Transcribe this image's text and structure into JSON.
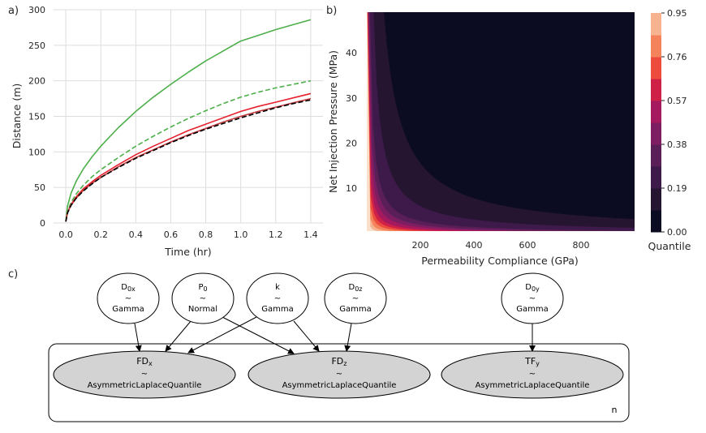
{
  "figure": {
    "panel_a_label": "a)",
    "panel_b_label": "b)",
    "panel_c_label": "c)"
  },
  "chart_data": [
    {
      "type": "line",
      "xlabel": "Time (hr)",
      "ylabel": "Distance (m)",
      "xlim": [
        -0.07,
        1.47
      ],
      "ylim": [
        0,
        300
      ],
      "xticks": [
        "0.0",
        "0.2",
        "0.4",
        "0.6",
        "0.8",
        "1.0",
        "1.2",
        "1.4"
      ],
      "yticks": [
        "0",
        "50",
        "100",
        "150",
        "200",
        "250",
        "300"
      ],
      "grid": true,
      "x": [
        0,
        0.01,
        0.03,
        0.06,
        0.1,
        0.15,
        0.2,
        0.3,
        0.4,
        0.5,
        0.6,
        0.7,
        0.8,
        0.9,
        1.0,
        1.1,
        1.2,
        1.3,
        1.4
      ],
      "series": [
        {
          "color": "#4daf4a",
          "dash": "solid",
          "values": [
            2,
            24,
            42,
            59,
            76,
            93,
            108,
            134,
            157,
            177,
            195,
            212,
            228,
            242,
            256,
            264,
            272,
            279,
            286
          ]
        },
        {
          "color": "#4daf4a",
          "dash": "dashed",
          "values": [
            2,
            17,
            29,
            41,
            53,
            65,
            75,
            92,
            108,
            122,
            135,
            147,
            158,
            168,
            177,
            184,
            190,
            195,
            200
          ]
        },
        {
          "color": "#e6212f",
          "dash": "solid",
          "values": [
            2,
            15,
            26,
            37,
            48,
            58,
            67,
            82,
            96,
            108,
            119,
            130,
            139,
            148,
            157,
            164,
            170,
            176,
            182
          ]
        },
        {
          "color": "#c3383c",
          "dash": "solid",
          "values": [
            2,
            15,
            25,
            35,
            46,
            56,
            64,
            79,
            92,
            103,
            114,
            124,
            133,
            142,
            150,
            157,
            163,
            169,
            175
          ]
        },
        {
          "color": "#000000",
          "dash": "dashed",
          "values": [
            2,
            14,
            25,
            35,
            45,
            55,
            64,
            78,
            91,
            102,
            113,
            123,
            132,
            140,
            148,
            155,
            162,
            168,
            173
          ]
        }
      ]
    },
    {
      "type": "contour",
      "xlabel": "Permeability Compliance (GPa)",
      "ylabel": "Net Injection Pressure (MPa)",
      "xlim": [
        0,
        1000
      ],
      "ylim": [
        0.5,
        49
      ],
      "xticks": [
        "200",
        "400",
        "600",
        "800"
      ],
      "yticks": [
        "10",
        "20",
        "30",
        "40"
      ],
      "colorbar_label": "Quantile",
      "colorbar_ticks": [
        "0.00",
        "0.19",
        "0.38",
        "0.57",
        "0.76",
        "0.95"
      ],
      "level_values": [
        0,
        0.095,
        0.19,
        0.285,
        0.38,
        0.475,
        0.57,
        0.665,
        0.76,
        0.855,
        0.95
      ],
      "level_colors": [
        "#0b0b22",
        "#251531",
        "#3e1a4a",
        "#5a1e58",
        "#7d1e62",
        "#a5195e",
        "#cf2148",
        "#ec4b3e",
        "#f4835c",
        "#f7b38f",
        "#fae0cb"
      ],
      "boundary_constants": [
        3100,
        1200,
        540,
        370,
        260,
        170,
        115,
        75,
        40,
        18
      ]
    }
  ],
  "graph": {
    "nodes": {
      "d0x": {
        "main": "D",
        "sub": "0x",
        "tilde": "~",
        "dist": "Gamma"
      },
      "p0": {
        "main": "P",
        "sub": "0",
        "tilde": "~",
        "dist": "Normal"
      },
      "k": {
        "main": "k",
        "sub": "",
        "tilde": "~",
        "dist": "Gamma"
      },
      "d0z": {
        "main": "D",
        "sub": "0z",
        "tilde": "~",
        "dist": "Gamma"
      },
      "d0y": {
        "main": "D",
        "sub": "0y",
        "tilde": "~",
        "dist": "Gamma"
      },
      "fdx": {
        "main": "FD",
        "sub": "x",
        "tilde": "~",
        "dist": "AsymmetricLaplaceQuantile"
      },
      "fdz": {
        "main": "FD",
        "sub": "z",
        "tilde": "~",
        "dist": "AsymmetricLaplaceQuantile"
      },
      "tfy": {
        "main": "TF",
        "sub": "y",
        "tilde": "~",
        "dist": "AsymmetricLaplaceQuantile"
      }
    },
    "plate_label": "n"
  }
}
